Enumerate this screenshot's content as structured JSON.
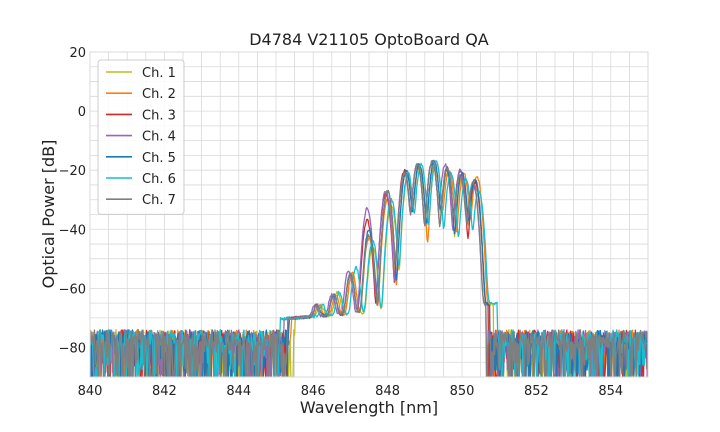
{
  "chart_data": {
    "type": "line",
    "title": "D4784 V21105 OptoBoard QA",
    "xlabel": "Wavelength [nm]",
    "ylabel": "Optical Power [dB]",
    "xlim": [
      840,
      855
    ],
    "ylim": [
      -90,
      20
    ],
    "x_major_ticks": [
      840,
      842,
      844,
      846,
      848,
      850,
      852,
      854
    ],
    "x_minor_step": 0.5,
    "y_major_ticks": [
      -80,
      -60,
      -40,
      -20,
      0,
      20
    ],
    "y_minor_step": 5,
    "tick_labels_x": [
      "840",
      "842",
      "844",
      "846",
      "848",
      "850",
      "852",
      "854"
    ],
    "tick_labels_y": [
      "−80",
      "−60",
      "−40",
      "−20",
      "0",
      "20"
    ],
    "grid": true,
    "legend_position": "top-left",
    "noise_floor_db": -77,
    "series": [
      {
        "name": "Ch. 1",
        "color": "#bcbd22",
        "noise_start": 840.0,
        "noise_end": 845.5,
        "noise_start_right": 850.7,
        "peaks": [
          [
            846.2,
            -67.5
          ],
          [
            846.65,
            -62
          ],
          [
            847.05,
            -55
          ],
          [
            847.6,
            -46
          ],
          [
            848.1,
            -32
          ],
          [
            848.55,
            -22
          ],
          [
            848.85,
            -19
          ],
          [
            849.25,
            -18
          ],
          [
            849.6,
            -21
          ],
          [
            850.0,
            -22
          ],
          [
            850.35,
            -24
          ]
        ]
      },
      {
        "name": "Ch. 2",
        "color": "#ff7f0e",
        "noise_start": 840.0,
        "noise_end": 845.4,
        "noise_start_right": 850.6,
        "peaks": [
          [
            846.15,
            -68
          ],
          [
            846.6,
            -63
          ],
          [
            847.05,
            -55
          ],
          [
            847.5,
            -43
          ],
          [
            848.0,
            -30
          ],
          [
            848.5,
            -20
          ],
          [
            848.85,
            -18
          ],
          [
            849.3,
            -17
          ],
          [
            849.65,
            -20
          ],
          [
            850.05,
            -21
          ],
          [
            850.4,
            -22
          ]
        ]
      },
      {
        "name": "Ch. 3",
        "color": "#d62728",
        "noise_start": 840.0,
        "noise_end": 845.3,
        "noise_start_right": 850.55,
        "peaks": [
          [
            846.1,
            -68
          ],
          [
            846.55,
            -63
          ],
          [
            847.0,
            -55
          ],
          [
            847.45,
            -37
          ],
          [
            847.95,
            -28
          ],
          [
            848.45,
            -20
          ],
          [
            848.8,
            -18
          ],
          [
            849.2,
            -17
          ],
          [
            849.6,
            -19
          ],
          [
            849.95,
            -20
          ],
          [
            850.35,
            -24
          ]
        ]
      },
      {
        "name": "Ch. 4",
        "color": "#9467bd",
        "noise_start": 840.0,
        "noise_end": 845.2,
        "noise_start_right": 850.5,
        "peaks": [
          [
            846.05,
            -68
          ],
          [
            846.5,
            -63
          ],
          [
            846.95,
            -54
          ],
          [
            847.45,
            -33
          ],
          [
            847.95,
            -27
          ],
          [
            848.45,
            -21
          ],
          [
            848.8,
            -18
          ],
          [
            849.2,
            -17
          ],
          [
            849.55,
            -18
          ],
          [
            849.95,
            -20
          ],
          [
            850.3,
            -25
          ]
        ]
      },
      {
        "name": "Ch. 5",
        "color": "#1f77b4",
        "noise_start": 840.0,
        "noise_end": 845.35,
        "noise_start_right": 850.6,
        "peaks": [
          [
            846.1,
            -68
          ],
          [
            846.55,
            -63
          ],
          [
            847.0,
            -55
          ],
          [
            847.5,
            -40
          ],
          [
            848.0,
            -27
          ],
          [
            848.5,
            -20
          ],
          [
            848.85,
            -18
          ],
          [
            849.25,
            -17
          ],
          [
            849.6,
            -20
          ],
          [
            850.0,
            -21
          ],
          [
            850.35,
            -23
          ]
        ]
      },
      {
        "name": "Ch. 6",
        "color": "#17becf",
        "noise_start": 840.0,
        "noise_end": 845.1,
        "noise_start_right": 850.8,
        "peaks": [
          [
            846.25,
            -68
          ],
          [
            846.7,
            -62
          ],
          [
            847.15,
            -53
          ],
          [
            847.6,
            -44
          ],
          [
            848.1,
            -30
          ],
          [
            848.55,
            -21
          ],
          [
            848.9,
            -18
          ],
          [
            849.3,
            -17
          ],
          [
            849.7,
            -21
          ],
          [
            850.1,
            -23
          ],
          [
            850.45,
            -27
          ]
        ]
      },
      {
        "name": "Ch. 7",
        "color": "#7f7f7f",
        "noise_start": 840.0,
        "noise_end": 845.3,
        "noise_start_right": 850.5,
        "peaks": [
          [
            846.1,
            -68
          ],
          [
            846.55,
            -63
          ],
          [
            847.0,
            -55
          ],
          [
            847.5,
            -42
          ],
          [
            848.0,
            -27
          ],
          [
            848.45,
            -21
          ],
          [
            848.8,
            -18
          ],
          [
            849.2,
            -17
          ],
          [
            849.6,
            -19
          ],
          [
            849.95,
            -22
          ],
          [
            850.3,
            -24
          ]
        ]
      }
    ]
  }
}
